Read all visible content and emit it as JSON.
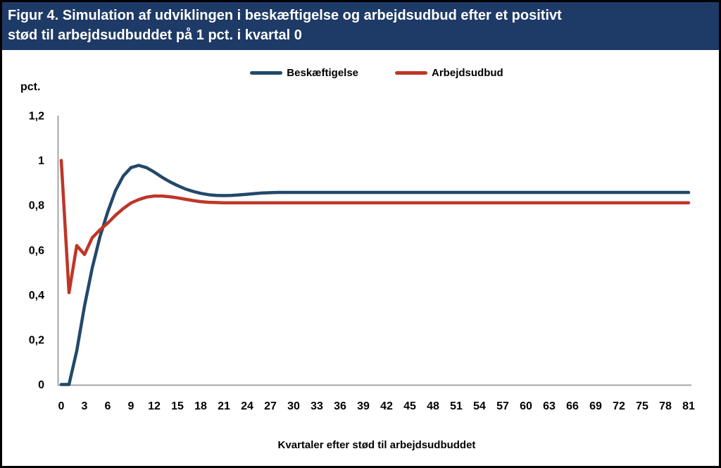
{
  "figure": {
    "title_line1": "Figur 4. Simulation af udviklingen i beskæftigelse og arbejdsudbud efter et positivt",
    "title_line2": "stød til arbejdsudbuddet på 1 pct. i kvartal 0"
  },
  "colors": {
    "title_bg": "#1E3A66",
    "title_fg": "#FFFFFF",
    "axis": "#A6A6A6",
    "border": "#000000",
    "blue_line": "#234869",
    "red_line": "#BE3628"
  },
  "chart_data": {
    "type": "line",
    "title": "Simulation af udviklingen i beskæftigelse og arbejdsudbud efter et positivt stød til arbejdsudbuddet på 1 pct. i kvartal 0",
    "ylabel": "pct.",
    "xlabel": "Kvartaler efter stød til arbejdsudbuddet",
    "ylim": [
      0,
      1.2
    ],
    "xlim": [
      0,
      81
    ],
    "x_tick_step": 3,
    "grid": false,
    "legend_position": "top-center",
    "y_ticks": [
      0,
      0.2,
      0.4,
      0.6,
      0.8,
      1,
      1.2
    ],
    "y_tick_labels": [
      "0",
      "0,2",
      "0,4",
      "0,6",
      "0,8",
      "1",
      "1,2"
    ],
    "x_tick_labels": [
      "0",
      "3",
      "6",
      "9",
      "12",
      "15",
      "18",
      "21",
      "24",
      "27",
      "30",
      "33",
      "36",
      "39",
      "42",
      "45",
      "48",
      "51",
      "54",
      "57",
      "60",
      "63",
      "66",
      "69",
      "72",
      "75",
      "78",
      "81"
    ],
    "series": [
      {
        "name": "Beskæftigelse",
        "color": "#234869",
        "values": [
          0,
          0,
          0.15,
          0.35,
          0.52,
          0.66,
          0.77,
          0.865,
          0.93,
          0.968,
          0.978,
          0.968,
          0.948,
          0.925,
          0.905,
          0.888,
          0.873,
          0.862,
          0.853,
          0.847,
          0.844,
          0.843,
          0.844,
          0.846,
          0.849,
          0.852,
          0.855,
          0.856,
          0.857,
          0.857,
          0.857,
          0.857,
          0.857,
          0.857,
          0.857,
          0.857,
          0.857,
          0.857,
          0.857,
          0.857,
          0.857,
          0.857,
          0.857,
          0.857,
          0.857,
          0.857,
          0.857,
          0.857,
          0.857,
          0.857,
          0.857,
          0.857,
          0.857,
          0.857,
          0.857,
          0.857,
          0.857,
          0.857,
          0.857,
          0.857,
          0.857,
          0.857,
          0.857,
          0.857,
          0.857,
          0.857,
          0.857,
          0.857,
          0.857,
          0.857,
          0.857,
          0.857,
          0.857,
          0.857,
          0.857,
          0.857,
          0.857,
          0.857,
          0.857,
          0.857,
          0.857,
          0.857
        ]
      },
      {
        "name": "Arbejdsudbud",
        "color": "#BE3628",
        "values": [
          1,
          0.41,
          0.62,
          0.58,
          0.655,
          0.69,
          0.72,
          0.755,
          0.785,
          0.81,
          0.825,
          0.836,
          0.841,
          0.841,
          0.838,
          0.833,
          0.827,
          0.821,
          0.816,
          0.813,
          0.812,
          0.811,
          0.811,
          0.811,
          0.811,
          0.811,
          0.811,
          0.811,
          0.811,
          0.811,
          0.811,
          0.811,
          0.811,
          0.811,
          0.811,
          0.811,
          0.811,
          0.811,
          0.811,
          0.811,
          0.811,
          0.811,
          0.811,
          0.811,
          0.811,
          0.811,
          0.811,
          0.811,
          0.811,
          0.811,
          0.811,
          0.811,
          0.811,
          0.811,
          0.811,
          0.811,
          0.811,
          0.811,
          0.811,
          0.811,
          0.811,
          0.811,
          0.811,
          0.811,
          0.811,
          0.811,
          0.811,
          0.811,
          0.811,
          0.811,
          0.811,
          0.811,
          0.811,
          0.811,
          0.811,
          0.811,
          0.811,
          0.811,
          0.811,
          0.811,
          0.811,
          0.811
        ]
      }
    ]
  }
}
